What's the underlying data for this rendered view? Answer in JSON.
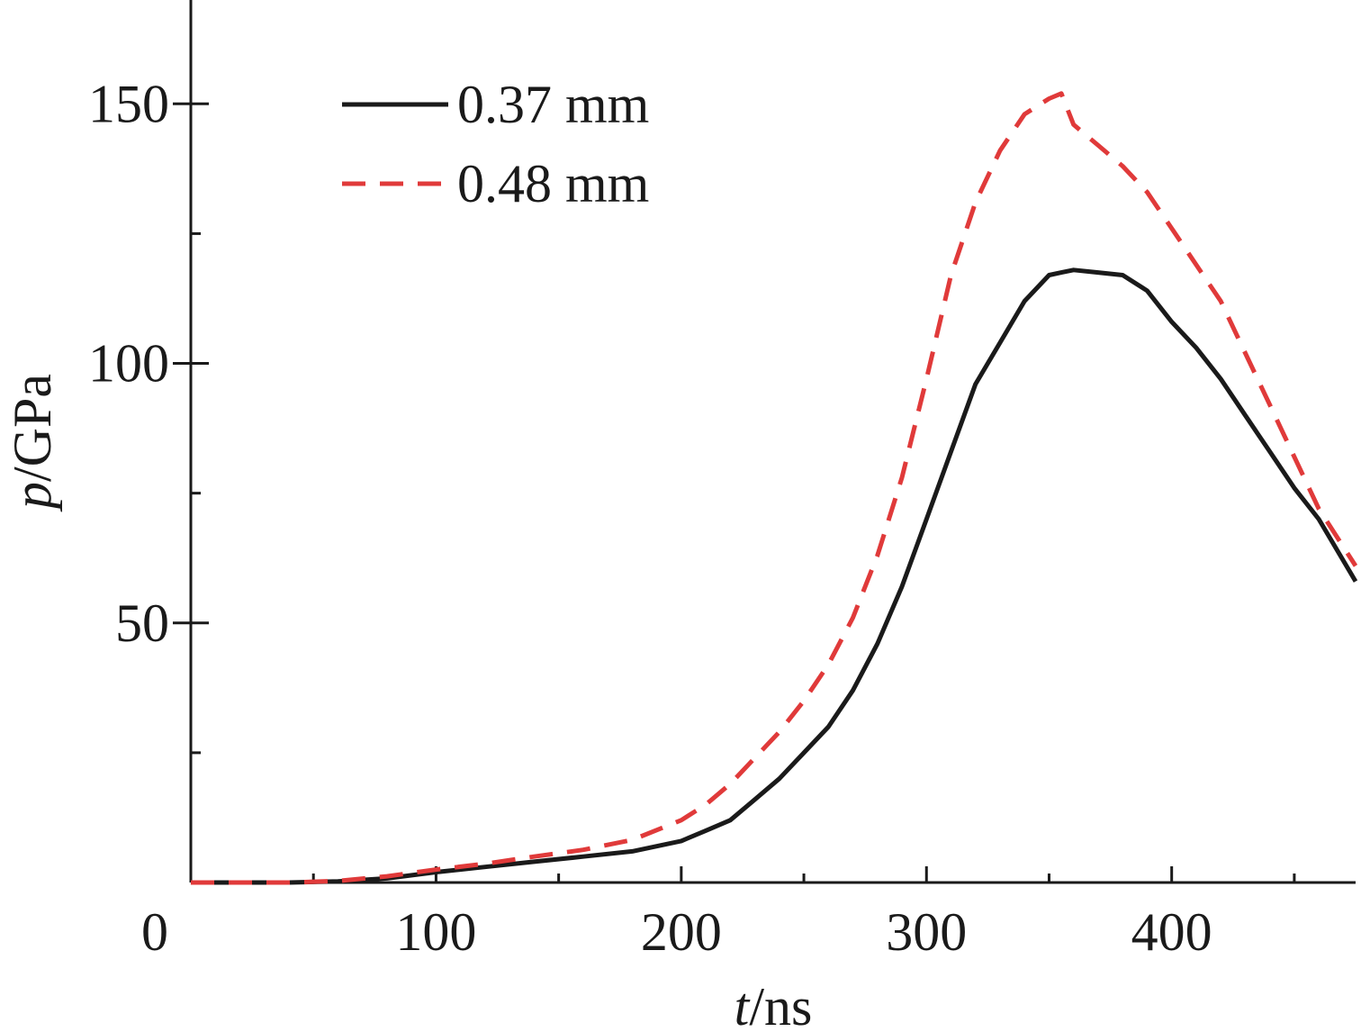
{
  "chart_data": {
    "type": "line",
    "xlabel_var": "t",
    "xlabel_unit": "/ns",
    "ylabel_var": "p",
    "ylabel_unit": "/GPa",
    "xlim": [
      0,
      475
    ],
    "ylim": [
      0,
      170
    ],
    "x_ticks_major": [
      0,
      100,
      200,
      300,
      400
    ],
    "x_ticks_minor": [
      50,
      150,
      250,
      350,
      450
    ],
    "x_tick_labels": [
      "0",
      "100",
      "200",
      "300",
      "400"
    ],
    "y_ticks_major": [
      50,
      100,
      150
    ],
    "y_ticks_minor": [
      25,
      75,
      125
    ],
    "y_tick_labels": [
      "50",
      "100",
      "150"
    ],
    "legend_position": "top-left",
    "series": [
      {
        "name": "0.37 mm",
        "color": "#1a1a1a",
        "dash": "solid",
        "x": [
          0,
          40,
          60,
          80,
          100,
          120,
          140,
          160,
          180,
          200,
          210,
          220,
          230,
          240,
          250,
          260,
          270,
          280,
          290,
          300,
          310,
          320,
          330,
          340,
          350,
          355,
          360,
          370,
          380,
          390,
          400,
          410,
          420,
          430,
          440,
          450,
          460,
          475
        ],
        "y": [
          0,
          0,
          0.2,
          0.8,
          2,
          3,
          4,
          5,
          6,
          8,
          10,
          12,
          16,
          20,
          25,
          30,
          37,
          46,
          57,
          70,
          83,
          96,
          104,
          112,
          117,
          117.5,
          118,
          117.5,
          117,
          114,
          108,
          103,
          97,
          90,
          83,
          76,
          70,
          58
        ]
      },
      {
        "name": "0.48 mm",
        "color": "#e03a3a",
        "dash": "dashed",
        "x": [
          0,
          40,
          60,
          80,
          100,
          120,
          140,
          160,
          180,
          200,
          210,
          220,
          230,
          240,
          250,
          260,
          270,
          280,
          290,
          300,
          310,
          320,
          330,
          340,
          350,
          355,
          360,
          370,
          380,
          390,
          400,
          410,
          420,
          430,
          440,
          450,
          460,
          475
        ],
        "y": [
          0,
          0,
          0.3,
          1.2,
          2.5,
          3.6,
          5,
          6.3,
          8.2,
          12,
          15,
          19,
          24,
          29,
          35,
          42,
          51,
          63,
          78,
          97,
          117,
          131,
          141,
          148,
          151,
          152,
          146,
          142,
          138,
          133,
          126,
          119,
          112,
          102,
          92,
          82,
          72,
          61
        ]
      }
    ]
  }
}
